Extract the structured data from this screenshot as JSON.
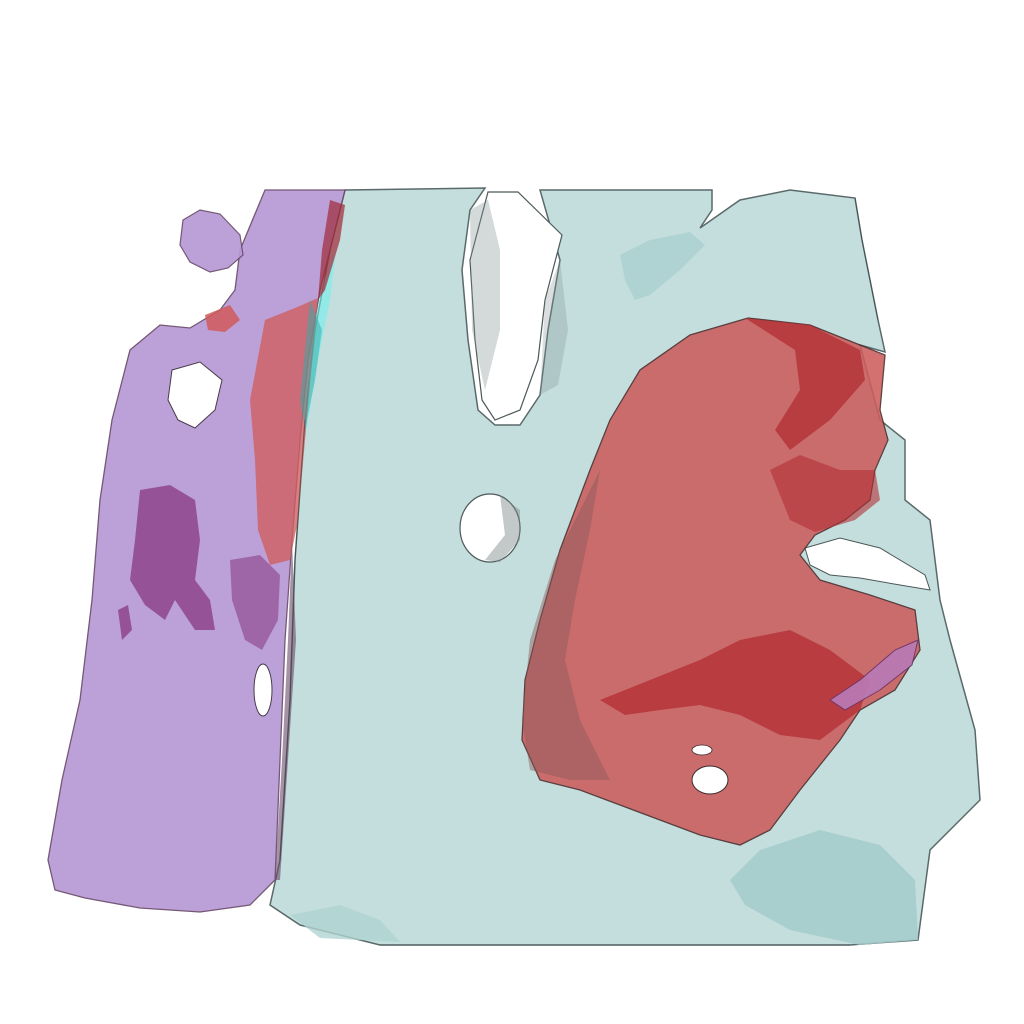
{
  "scene": {
    "background": "#ffffff",
    "structures": [
      {
        "name": "teal-volume",
        "fill": "#bfdcdb",
        "edge": "#4d5d5e"
      },
      {
        "name": "teal-volume-shadow",
        "fill": "#9cc6c6"
      },
      {
        "name": "red-mass",
        "fill": "#cd5d5d",
        "dark": "#b22e33"
      },
      {
        "name": "purple-slab",
        "fill": "#b79ad6",
        "dark": "#8c3f86"
      },
      {
        "name": "cyan-highlight",
        "fill": "#5ff2ec"
      }
    ]
  }
}
